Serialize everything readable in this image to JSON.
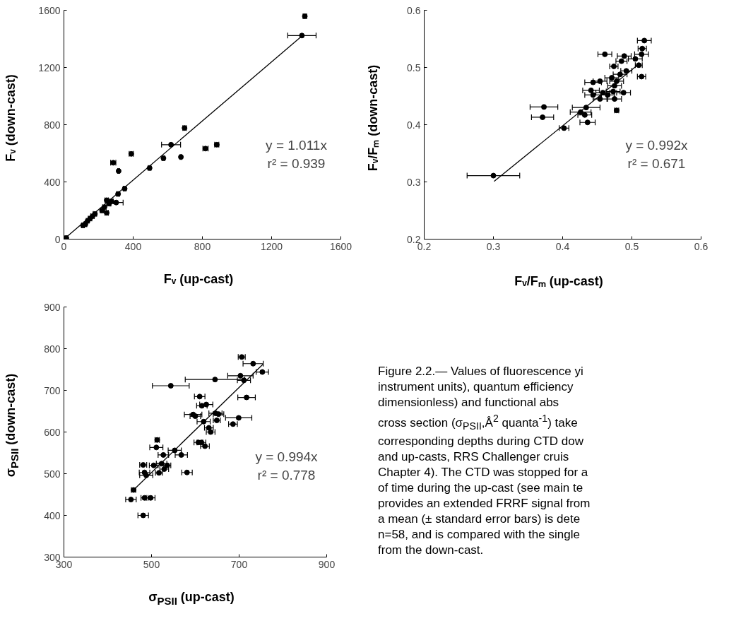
{
  "chart_data": [
    {
      "type": "scatter",
      "xlabel": "Fᵥ (up-cast)",
      "ylabel": "Fᵥ (down-cast)",
      "xlim": [
        0,
        1600
      ],
      "ylim": [
        0,
        1600
      ],
      "xticks": [
        0,
        400,
        800,
        1200,
        1600
      ],
      "yticks": [
        0,
        400,
        800,
        1200,
        1600
      ],
      "grid": false,
      "annotations": [
        "y = 1.011x",
        "r² = 0.939"
      ],
      "series": [
        {
          "marker": "circle",
          "color": "#000000",
          "x": [
            1392,
            1375,
            697,
            619,
            575,
            676,
            818,
            883,
            389,
            285,
            316,
            495,
            351,
            313,
            302,
            247,
            234,
            261,
            220,
            275,
            247,
            165,
            151,
            137,
            124,
            110,
            179,
            14
          ],
          "values": [
            1558,
            1423,
            777,
            660,
            566,
            574,
            633,
            660,
            596,
            534,
            476,
            497,
            353,
            316,
            256,
            272,
            224,
            248,
            200,
            264,
            184,
            160,
            144,
            128,
            104,
            96,
            176,
            8
          ],
          "xerrors": [
            10,
            82,
            10,
            55,
            8,
            5,
            15,
            12,
            12,
            15,
            5,
            8,
            8,
            8,
            40,
            10,
            10,
            10,
            10,
            10,
            10,
            10,
            10,
            8,
            8,
            8,
            10,
            8
          ]
        },
        {
          "type": "line",
          "color": "#000000",
          "x": [
            10,
            1375
          ],
          "values": [
            10,
            1420
          ]
        }
      ]
    },
    {
      "type": "scatter",
      "xlabel": "Fᵥ/Fₘ (up-cast)",
      "ylabel": "Fᵥ/Fₘ (down-cast)",
      "xlim": [
        0.2,
        0.6
      ],
      "ylim": [
        0.2,
        0.6
      ],
      "xticks": [
        0.2,
        0.3,
        0.4,
        0.5,
        0.6
      ],
      "yticks": [
        0.2,
        0.3,
        0.4,
        0.5,
        0.6
      ],
      "grid": false,
      "annotations": [
        "y = 0.992x",
        "r² = 0.671"
      ],
      "series": [
        {
          "marker": "circle",
          "color": "#000000",
          "x": [
            0.3,
            0.373,
            0.371,
            0.402,
            0.436,
            0.426,
            0.434,
            0.432,
            0.478,
            0.518,
            0.461,
            0.474,
            0.489,
            0.485,
            0.505,
            0.514,
            0.515,
            0.51,
            0.514,
            0.492,
            0.483,
            0.471,
            0.478,
            0.444,
            0.454,
            0.475,
            0.441,
            0.458,
            0.473,
            0.488,
            0.454,
            0.475,
            0.444,
            0.465
          ],
          "values": [
            0.311,
            0.431,
            0.413,
            0.394,
            0.404,
            0.422,
            0.43,
            0.417,
            0.425,
            0.547,
            0.523,
            0.502,
            0.52,
            0.511,
            0.515,
            0.523,
            0.533,
            0.504,
            0.484,
            0.494,
            0.488,
            0.482,
            0.476,
            0.474,
            0.476,
            0.468,
            0.46,
            0.456,
            0.458,
            0.456,
            0.445,
            0.445,
            0.452,
            0.452
          ],
          "xerrors": [
            0.038,
            0.02,
            0.016,
            0.007,
            0.011,
            0.015,
            0.02,
            0.01,
            0.003,
            0.01,
            0.01,
            0.006,
            0.01,
            0.008,
            0.01,
            0.01,
            0.006,
            0.005,
            0.006,
            0.008,
            0.01,
            0.01,
            0.01,
            0.012,
            0.01,
            0.01,
            0.012,
            0.01,
            0.01,
            0.01,
            0.01,
            0.01,
            0.012,
            0.01
          ]
        },
        {
          "type": "line",
          "color": "#000000",
          "x": [
            0.301,
            0.51
          ],
          "values": [
            0.301,
            0.506
          ]
        }
      ]
    },
    {
      "type": "scatter",
      "xlabel": "σ$_{PSII}$ (up-cast)",
      "ylabel": "σ$_{PSII}$ (down-cast)",
      "xlim": [
        300,
        900
      ],
      "ylim": [
        300,
        900
      ],
      "xticks": [
        300,
        500,
        700,
        900
      ],
      "yticks": [
        300,
        400,
        500,
        600,
        700,
        800,
        900
      ],
      "grid": false,
      "annotations": [
        "y = 0.994x",
        "r² = 0.778"
      ],
      "series": [
        {
          "marker": "circle",
          "color": "#000000",
          "x": [
            706,
            732,
            753,
            703,
            711,
            645,
            544,
            717,
            610,
            615,
            625,
            595,
            600,
            646,
            653,
            649,
            699,
            686,
            619,
            631,
            635,
            513,
            511,
            553,
            527,
            568,
            607,
            614,
            622,
            481,
            505,
            523,
            536,
            529,
            517,
            484,
            488,
            581,
            459,
            453,
            484,
            498,
            481
          ],
          "values": [
            780,
            764,
            744,
            735,
            724,
            726,
            711,
            683,
            685,
            663,
            666,
            642,
            638,
            645,
            643,
            628,
            634,
            619,
            625,
            610,
            600,
            581,
            563,
            556,
            545,
            545,
            575,
            575,
            566,
            521,
            520,
            524,
            520,
            511,
            502,
            503,
            496,
            503,
            461,
            438,
            442,
            442,
            400
          ],
          "xerrors": [
            8,
            23,
            14,
            29,
            15,
            68,
            42,
            20,
            12,
            12,
            15,
            20,
            12,
            15,
            12,
            8,
            30,
            10,
            15,
            10,
            10,
            5,
            15,
            15,
            12,
            14,
            10,
            10,
            10,
            8,
            10,
            12,
            8,
            10,
            8,
            12,
            15,
            12,
            5,
            12,
            8,
            10,
            12
          ]
        },
        {
          "type": "line",
          "color": "#000000",
          "x": [
            459,
            755
          ],
          "values": [
            461,
            763
          ]
        }
      ]
    },
    {
      "type": "other",
      "annotations": [
        "Figure 2.2.— Values of fluorescence yi",
        "instrument units), quantum efficiency",
        "dimensionless) and functional abs",
        "cross section (σ$_{PSII}$,Å$^{2}$ quanta$^{-1}$) take",
        "corresponding depths during CTD dow",
        "and up-casts, RRS Challenger cruis",
        "Chapter 4). The CTD was stopped for a",
        "of time during the up-cast (see main te",
        "provides an extended FRRF signal from",
        "a mean (± standard error bars) is dete",
        "n=58, and is compared with the single",
        "from the down-cast."
      ]
    }
  ]
}
